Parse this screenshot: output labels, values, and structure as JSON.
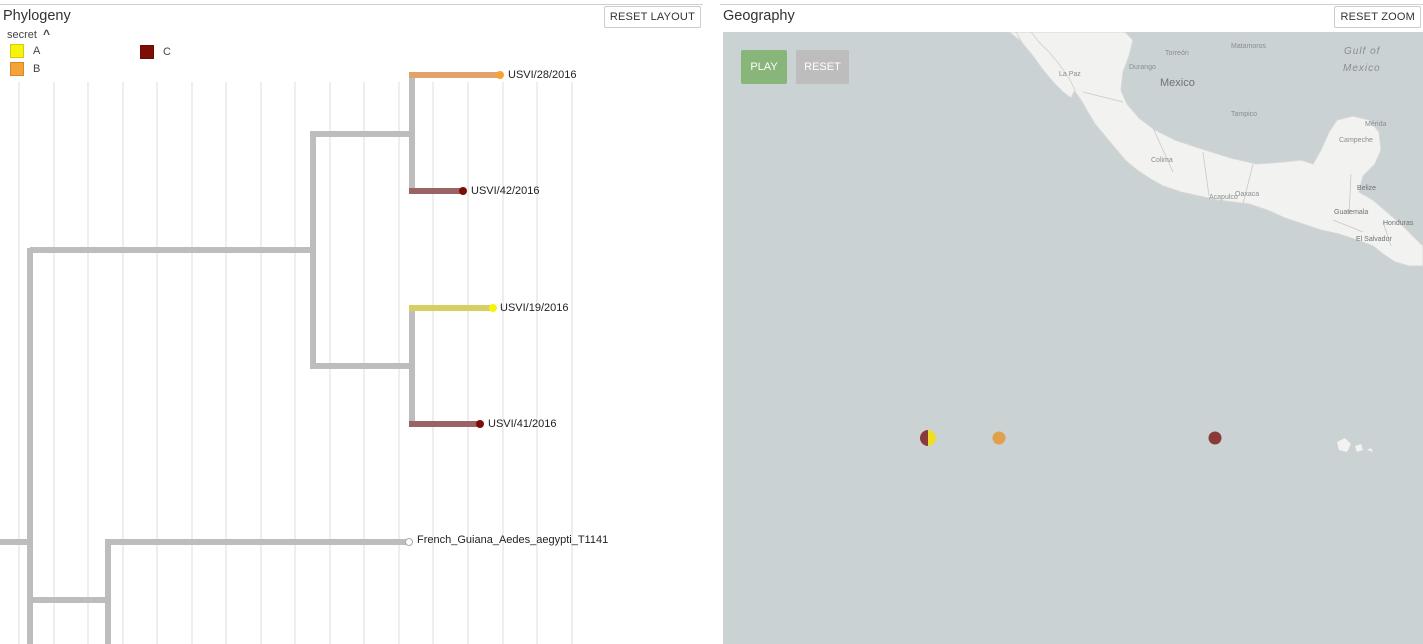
{
  "phylogeny": {
    "title": "Phylogeny",
    "reset_layout_label": "RESET LAYOUT",
    "legend": {
      "toggle_label": "secret",
      "items": [
        {
          "label": "A",
          "color": "#f7f30e"
        },
        {
          "label": "B",
          "color": "#f6a237"
        },
        {
          "label": "C",
          "color": "#7d0e07"
        }
      ]
    },
    "tips": [
      {
        "name": "USVI/28/2016",
        "color": "#f6a237"
      },
      {
        "name": "USVI/42/2016",
        "color": "#7d0e07"
      },
      {
        "name": "USVI/19/2016",
        "color": "#f7f30e"
      },
      {
        "name": "USVI/41/2016",
        "color": "#7d0e07"
      },
      {
        "name": "French_Guiana_Aedes_aegypti_T1141",
        "color": "#ffffff"
      }
    ]
  },
  "geography": {
    "title": "Geography",
    "reset_zoom_label": "RESET ZOOM",
    "play_label": "PLAY",
    "reset_label": "RESET",
    "play_color": "#88b57a",
    "reset_color": "#bdbdbd",
    "map_labels": {
      "country": "Mexico",
      "gulf": "Gulf of",
      "gulf2": "Mexico",
      "cities": [
        "Torreón",
        "Matamoros",
        "La Paz",
        "Durango",
        "Tampico",
        "Mérida",
        "Campeche",
        "Colima",
        "Oaxaca",
        "Acapulco",
        "Belize",
        "Guatemala",
        "Honduras",
        "El Salvador"
      ]
    }
  }
}
